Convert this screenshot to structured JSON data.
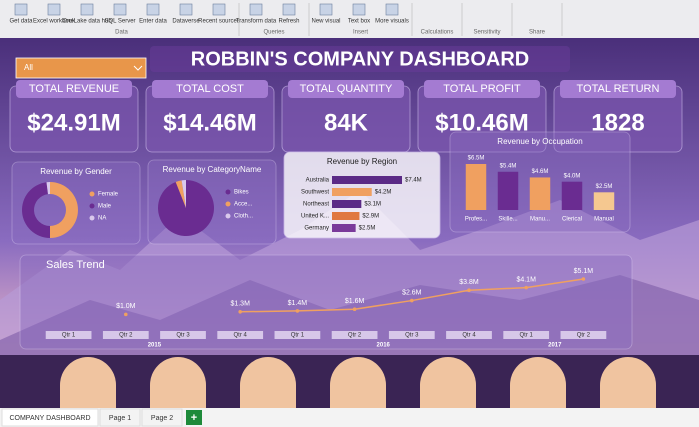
{
  "ribbon": {
    "groups": [
      {
        "label": "Data",
        "buttons": [
          "Get data",
          "Excel workbook",
          "OneLake data hub",
          "SQL Server",
          "Enter data",
          "Dataverse",
          "Recent sources"
        ]
      },
      {
        "label": "Queries",
        "buttons": [
          "Transform data",
          "Refresh"
        ]
      },
      {
        "label": "Insert",
        "buttons": [
          "New visual",
          "Text box",
          "More visuals"
        ]
      },
      {
        "label": "Calculations",
        "buttons": []
      },
      {
        "label": "Sensitivity",
        "buttons": []
      },
      {
        "label": "Share",
        "buttons": []
      }
    ]
  },
  "title": "ROBBIN'S COMPANY DASHBOARD",
  "slicer": "All",
  "kpis": [
    {
      "label": "TOTAL REVENUE",
      "value": "$24.91M"
    },
    {
      "label": "TOTAL COST",
      "value": "$14.46M"
    },
    {
      "label": "TOTAL QUANTITY",
      "value": "84K"
    },
    {
      "label": "TOTAL PROFIT",
      "value": "$10.46M"
    },
    {
      "label": "TOTAL RETURN",
      "value": "1828"
    }
  ],
  "chart_data": [
    {
      "type": "donut",
      "title": "Revenue by Gender",
      "categories": [
        "Female",
        "Male",
        "NA"
      ],
      "values": [
        50,
        48,
        2
      ],
      "colors": [
        "#f0a060",
        "#6a2c91",
        "#d9c8ec"
      ]
    },
    {
      "type": "pie",
      "title": "Revenue by CategoryName",
      "categories": [
        "Bikes",
        "Acce...",
        "Cloth..."
      ],
      "values": [
        94,
        3.5,
        2.5
      ],
      "colors": [
        "#6a2c91",
        "#f0a060",
        "#d9c8ec"
      ]
    },
    {
      "type": "hbar",
      "title": "Revenue by Region",
      "categories": [
        "Australia",
        "Southwest",
        "Northeast",
        "United K...",
        "Germany"
      ],
      "values": [
        7.4,
        4.2,
        3.1,
        2.9,
        2.5
      ],
      "value_labels": [
        "$7.4M",
        "$4.2M",
        "$3.1M",
        "$2.9M",
        "$2.5M"
      ],
      "colors": [
        "#5b2a86",
        "#f0a060",
        "#5b2a86",
        "#e07840",
        "#7a3a9a"
      ]
    },
    {
      "type": "bar",
      "title": "Revenue by Occupation",
      "categories": [
        "Profes...",
        "Skille...",
        "Manu...",
        "Clerical",
        "Manual"
      ],
      "values": [
        6.5,
        5.4,
        4.6,
        4.0,
        2.5
      ],
      "value_labels": [
        "$6.5M",
        "$5.4M",
        "$4.6M",
        "$4.0M",
        "$2.5M"
      ],
      "colors": [
        "#f0a060",
        "#6a2c91",
        "#f0a060",
        "#6a2c91",
        "#f5c890"
      ]
    },
    {
      "type": "line",
      "title": "Sales Trend",
      "categories": [
        "Qtr 1",
        "Qtr 2",
        "Qtr 3",
        "Qtr 4",
        "Qtr 1",
        "Qtr 2",
        "Qtr 3",
        "Qtr 4",
        "Qtr 1",
        "Qtr 2"
      ],
      "years": [
        "2015",
        "2016",
        "2017"
      ],
      "values": [
        null,
        1.0,
        null,
        1.3,
        1.4,
        1.6,
        2.6,
        3.8,
        4.1,
        5.1
      ],
      "value_labels": [
        null,
        "$1.0M",
        null,
        "$1.3M",
        "$1.4M",
        "$1.6M",
        "$2.6M",
        "$3.8M",
        "$4.1M",
        "$5.1M"
      ],
      "color": "#f0a060"
    }
  ],
  "tabs": [
    "COMPANY DASHBOARD",
    "Page 1",
    "Page 2"
  ],
  "add_tab": "+"
}
